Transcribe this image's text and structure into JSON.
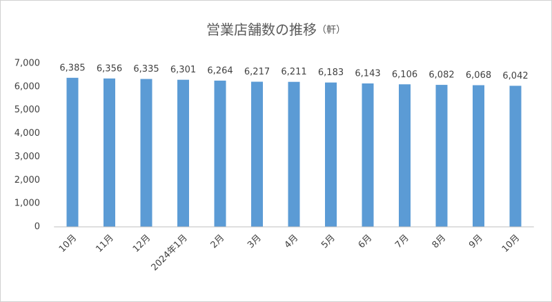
{
  "chart_data": {
    "type": "bar",
    "title": "営業店舗数の推移",
    "title_unit": "（軒）",
    "categories": [
      "10月",
      "11月",
      "12月",
      "2024年1月",
      "2月",
      "3月",
      "4月",
      "5月",
      "6月",
      "7月",
      "8月",
      "9月",
      "10月"
    ],
    "values": [
      6385,
      6356,
      6335,
      6301,
      6264,
      6217,
      6211,
      6183,
      6143,
      6106,
      6082,
      6068,
      6042
    ],
    "value_labels": [
      "6,385",
      "6,356",
      "6,335",
      "6,301",
      "6,264",
      "6,217",
      "6,211",
      "6,183",
      "6,143",
      "6,106",
      "6,082",
      "6,068",
      "6,042"
    ],
    "color": "#5b9bd5",
    "ylim": [
      0,
      7000
    ],
    "yticks": [
      0,
      {
        "value": 1000,
        "label": "1,000"
      },
      {
        "value": 2000,
        "label": "2,000"
      },
      {
        "value": 3000,
        "label": "3,000"
      },
      {
        "value": 4000,
        "label": "4,000"
      },
      {
        "value": 5000,
        "label": "5,000"
      },
      {
        "value": 6000,
        "label": "6,000"
      },
      {
        "value": 7000,
        "label": "7,000"
      }
    ],
    "grid": false
  }
}
